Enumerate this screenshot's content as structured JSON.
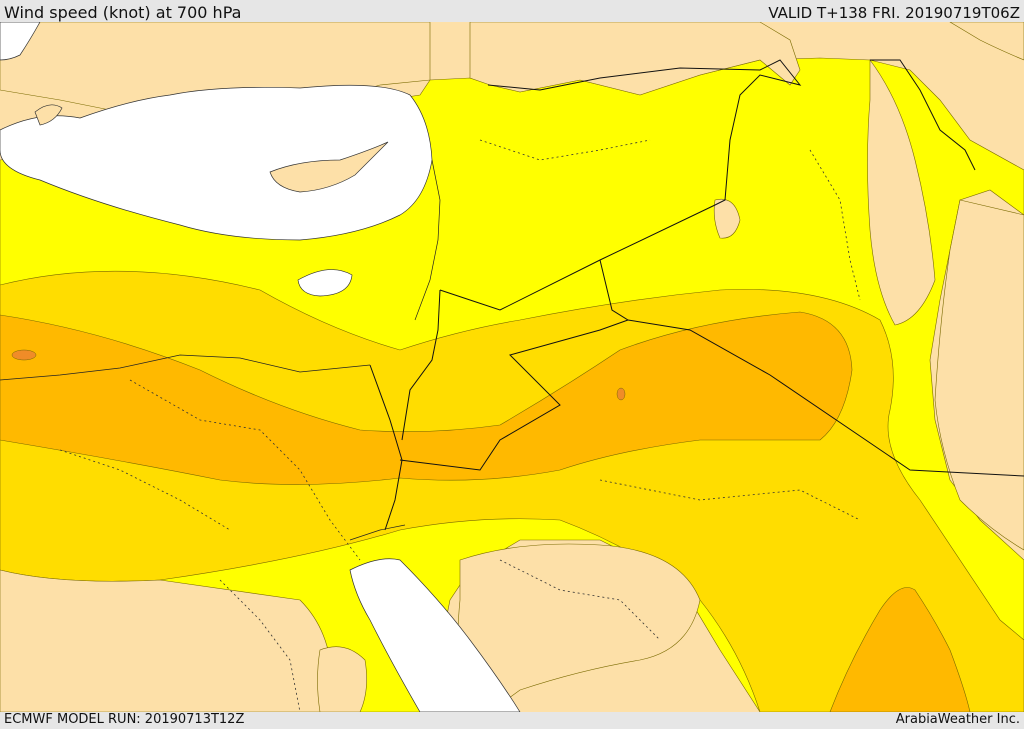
{
  "header": {
    "title": "Wind speed (knot) at 700 hPa",
    "valid": "VALID T+138 FRI. 20190719T06Z"
  },
  "footer": {
    "model_run": "ECMWF MODEL RUN: 20190713T12Z",
    "credit": "ArabiaWeather Inc."
  },
  "colors": {
    "land_calm": "#fde0a8",
    "band_yellow": "#ffff00",
    "band_gold": "#ffdd00",
    "band_orange": "#ffb900",
    "band_dark_orange": "#f08c28",
    "water": "#ffffff",
    "border": "#000000"
  },
  "map_layers": [
    "wind-speed-bands",
    "sea-areas",
    "country-borders",
    "coastlines"
  ]
}
